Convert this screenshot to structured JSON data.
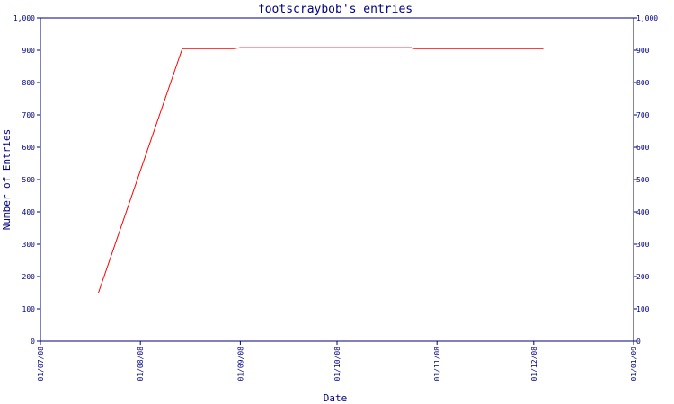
{
  "colors": {
    "axis": "#000080",
    "series": "#ff0000",
    "background": "#ffffff"
  },
  "chart_data": {
    "type": "line",
    "title": "footscraybob's entries",
    "xlabel": "Date",
    "ylabel": "Number of Entries",
    "ylim": [
      0,
      1000
    ],
    "xlim": [
      "2008-07-01",
      "2009-01-01"
    ],
    "grid": false,
    "y_ticks": [
      "0",
      "100",
      "200",
      "300",
      "400",
      "500",
      "600",
      "700",
      "800",
      "900",
      "1,000"
    ],
    "x_ticks": [
      "01/07/08",
      "01/08/08",
      "01/09/08",
      "01/10/08",
      "01/11/08",
      "01/12/08",
      "01/01/09"
    ],
    "series": [
      {
        "x": [
          "2008-07-19",
          "2008-08-14",
          "2008-08-30",
          "2008-09-01",
          "2008-10-24",
          "2008-10-25",
          "2008-12-04"
        ],
        "y": [
          150,
          905,
          905,
          908,
          908,
          905,
          905
        ]
      }
    ]
  }
}
